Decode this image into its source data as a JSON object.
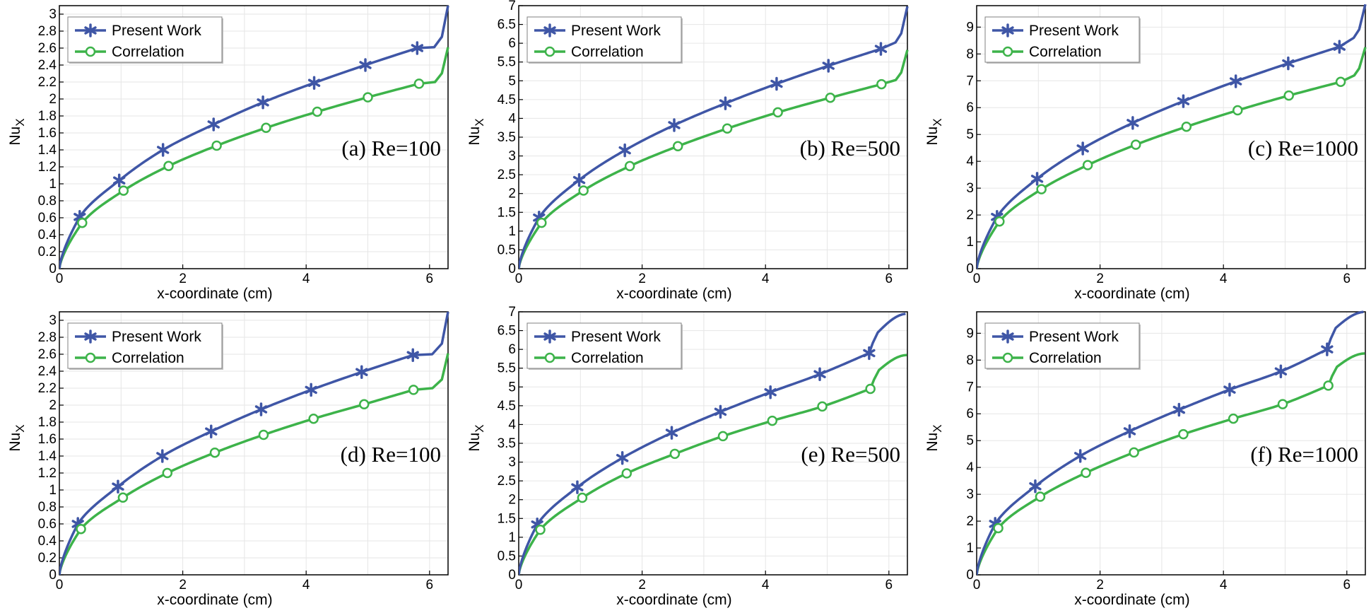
{
  "colors": {
    "present": "#3f56a6",
    "correlation": "#3db34a",
    "grid": "#e6e6e6",
    "frame": "#000000"
  },
  "chart_data": [
    {
      "type": "line",
      "label": "(a) Re=100",
      "xlabel": "x-coordinate (cm)",
      "ylabel": "Nu",
      "ylabel_sub": "X",
      "xlim": [
        0,
        6.3
      ],
      "ylim": [
        0,
        3.1
      ],
      "xticks": [
        "0",
        "2",
        "4",
        "6"
      ],
      "yticks": [
        "0",
        "0.2",
        "0.4",
        "0.6",
        "0.8",
        "1",
        "1.2",
        "1.4",
        "1.6",
        "1.8",
        "2",
        "2.2",
        "2.4",
        "2.6",
        "2.8",
        "3"
      ],
      "legend": {
        "position": "top-left",
        "entries": [
          "Present Work",
          "Correlation"
        ]
      },
      "series": [
        {
          "name": "Present Work",
          "marker": "asterisk",
          "peak": 2.61,
          "end": 3.1,
          "markers": [
            [
              0.33,
              0.61
            ],
            [
              0.97,
              1.04
            ],
            [
              1.68,
              1.4
            ],
            [
              2.5,
              1.7
            ],
            [
              3.3,
              1.96
            ],
            [
              4.13,
              2.19
            ],
            [
              4.96,
              2.4
            ],
            [
              5.8,
              2.6
            ]
          ]
        },
        {
          "name": "Correlation",
          "marker": "circle",
          "peak": 2.2,
          "end": 2.61,
          "markers": [
            [
              0.37,
              0.54
            ],
            [
              1.04,
              0.92
            ],
            [
              1.77,
              1.21
            ],
            [
              2.55,
              1.45
            ],
            [
              3.35,
              1.66
            ],
            [
              4.18,
              1.85
            ],
            [
              5.0,
              2.02
            ],
            [
              5.83,
              2.18
            ]
          ]
        }
      ]
    },
    {
      "type": "line",
      "label": "(b) Re=500",
      "xlabel": "x-coordinate (cm)",
      "ylabel": "Nu",
      "ylabel_sub": "X",
      "xlim": [
        0,
        6.3
      ],
      "ylim": [
        0,
        7
      ],
      "xticks": [
        "0",
        "2",
        "4",
        "6"
      ],
      "yticks": [
        "0",
        "0.5",
        "1",
        "1.5",
        "2",
        "2.5",
        "3",
        "3.5",
        "4",
        "4.5",
        "5",
        "5.5",
        "6",
        "6.5",
        "7"
      ],
      "legend": {
        "position": "top-left",
        "entries": [
          "Present Work",
          "Correlation"
        ]
      },
      "series": [
        {
          "name": "Present Work",
          "marker": "asterisk",
          "peak": 6.02,
          "end": 6.98,
          "markers": [
            [
              0.33,
              1.36
            ],
            [
              0.98,
              2.36
            ],
            [
              1.72,
              3.15
            ],
            [
              2.52,
              3.82
            ],
            [
              3.35,
              4.4
            ],
            [
              4.18,
              4.92
            ],
            [
              5.02,
              5.4
            ],
            [
              5.87,
              5.85
            ]
          ]
        },
        {
          "name": "Correlation",
          "marker": "circle",
          "peak": 5.02,
          "end": 5.82,
          "markers": [
            [
              0.37,
              1.22
            ],
            [
              1.05,
              2.08
            ],
            [
              1.8,
              2.73
            ],
            [
              2.58,
              3.26
            ],
            [
              3.38,
              3.73
            ],
            [
              4.2,
              4.16
            ],
            [
              5.05,
              4.55
            ],
            [
              5.88,
              4.91
            ]
          ]
        }
      ]
    },
    {
      "type": "line",
      "label": "(c) Re=1000",
      "xlabel": "x-coordinate (cm)",
      "ylabel": "Nu",
      "ylabel_sub": "X",
      "xlim": [
        0,
        6.3
      ],
      "ylim": [
        0,
        9.8
      ],
      "xticks": [
        "0",
        "2",
        "4",
        "6"
      ],
      "yticks": [
        "0",
        "1",
        "2",
        "3",
        "4",
        "5",
        "6",
        "7",
        "8",
        "9"
      ],
      "legend": {
        "position": "top-left",
        "entries": [
          "Present Work",
          "Correlation"
        ]
      },
      "series": [
        {
          "name": "Present Work",
          "marker": "asterisk",
          "peak": 8.6,
          "end": 9.85,
          "markers": [
            [
              0.33,
              1.93
            ],
            [
              0.98,
              3.35
            ],
            [
              1.72,
              4.48
            ],
            [
              2.53,
              5.43
            ],
            [
              3.35,
              6.24
            ],
            [
              4.2,
              6.98
            ],
            [
              5.05,
              7.65
            ],
            [
              5.88,
              8.27
            ]
          ]
        },
        {
          "name": "Correlation",
          "marker": "circle",
          "peak": 7.2,
          "end": 8.25,
          "markers": [
            [
              0.37,
              1.76
            ],
            [
              1.05,
              2.96
            ],
            [
              1.8,
              3.86
            ],
            [
              2.58,
              4.62
            ],
            [
              3.4,
              5.29
            ],
            [
              4.23,
              5.9
            ],
            [
              5.06,
              6.45
            ],
            [
              5.9,
              6.96
            ]
          ]
        }
      ]
    },
    {
      "type": "line",
      "label": "(d) Re=100",
      "xlabel": "x-coordinate (cm)",
      "ylabel": "Nu",
      "ylabel_sub": "X",
      "xlim": [
        0,
        6.3
      ],
      "ylim": [
        0,
        3.1
      ],
      "xticks": [
        "0",
        "2",
        "4",
        "6"
      ],
      "yticks": [
        "0",
        "0.2",
        "0.4",
        "0.6",
        "0.8",
        "1",
        "1.2",
        "1.4",
        "1.6",
        "1.8",
        "2",
        "2.2",
        "2.4",
        "2.6",
        "2.8",
        "3"
      ],
      "legend": {
        "position": "top-left",
        "entries": [
          "Present Work",
          "Correlation"
        ]
      },
      "series": [
        {
          "name": "Present Work",
          "marker": "asterisk",
          "peak": 2.6,
          "end": 3.1,
          "markers": [
            [
              0.3,
              0.6
            ],
            [
              0.95,
              1.04
            ],
            [
              1.67,
              1.4
            ],
            [
              2.46,
              1.69
            ],
            [
              3.27,
              1.95
            ],
            [
              4.08,
              2.18
            ],
            [
              4.9,
              2.39
            ],
            [
              5.73,
              2.59
            ]
          ]
        },
        {
          "name": "Correlation",
          "marker": "circle",
          "peak": 2.2,
          "end": 2.61,
          "markers": [
            [
              0.35,
              0.54
            ],
            [
              1.03,
              0.91
            ],
            [
              1.75,
              1.2
            ],
            [
              2.52,
              1.44
            ],
            [
              3.31,
              1.65
            ],
            [
              4.12,
              1.84
            ],
            [
              4.94,
              2.01
            ],
            [
              5.74,
              2.18
            ]
          ]
        }
      ]
    },
    {
      "type": "line",
      "label": "(e) Re=500",
      "xlabel": "x-coordinate (cm)",
      "ylabel": "Nu",
      "ylabel_sub": "X",
      "xlim": [
        0,
        6.3
      ],
      "ylim": [
        0,
        7
      ],
      "xticks": [
        "0",
        "2",
        "4",
        "6"
      ],
      "yticks": [
        "0",
        "0.5",
        "1",
        "1.5",
        "2",
        "2.5",
        "3",
        "3.5",
        "4",
        "4.5",
        "5",
        "5.5",
        "6",
        "6.5",
        "7"
      ],
      "legend": {
        "position": "top-left",
        "entries": [
          "Present Work",
          "Correlation"
        ]
      },
      "series": [
        {
          "name": "Present Work",
          "marker": "asterisk",
          "peak": 5.7,
          "end": 6.95,
          "step": 5.65,
          "stepTop": 6.45,
          "markers": [
            [
              0.3,
              1.34
            ],
            [
              0.95,
              2.33
            ],
            [
              1.68,
              3.11
            ],
            [
              2.48,
              3.78
            ],
            [
              3.27,
              4.34
            ],
            [
              4.08,
              4.86
            ],
            [
              4.88,
              5.34
            ],
            [
              5.68,
              5.9
            ]
          ]
        },
        {
          "name": "Correlation",
          "marker": "circle",
          "peak": 4.8,
          "end": 5.85,
          "step": 5.65,
          "stepTop": 5.45,
          "markers": [
            [
              0.35,
              1.2
            ],
            [
              1.03,
              2.05
            ],
            [
              1.75,
              2.7
            ],
            [
              2.53,
              3.22
            ],
            [
              3.31,
              3.69
            ],
            [
              4.11,
              4.1
            ],
            [
              4.92,
              4.48
            ],
            [
              5.7,
              4.95
            ]
          ]
        }
      ]
    },
    {
      "type": "line",
      "label": "(f) Re=1000",
      "xlabel": "x-coordinate (cm)",
      "ylabel": "Nu",
      "ylabel_sub": "X",
      "xlim": [
        0,
        6.3
      ],
      "ylim": [
        0,
        9.8
      ],
      "xticks": [
        "0",
        "2",
        "4",
        "6"
      ],
      "yticks": [
        "0",
        "1",
        "2",
        "3",
        "4",
        "5",
        "6",
        "7",
        "8",
        "9"
      ],
      "legend": {
        "position": "top-left",
        "entries": [
          "Present Work",
          "Correlation"
        ]
      },
      "series": [
        {
          "name": "Present Work",
          "marker": "asterisk",
          "peak": 8.2,
          "end": 9.8,
          "step": 5.63,
          "stepTop": 9.2,
          "markers": [
            [
              0.3,
              1.9
            ],
            [
              0.95,
              3.3
            ],
            [
              1.68,
              4.43
            ],
            [
              2.48,
              5.35
            ],
            [
              3.28,
              6.15
            ],
            [
              4.1,
              6.9
            ],
            [
              4.93,
              7.58
            ],
            [
              5.68,
              8.4
            ]
          ]
        },
        {
          "name": "Correlation",
          "marker": "circle",
          "peak": 6.9,
          "end": 8.25,
          "step": 5.65,
          "stepTop": 7.75,
          "markers": [
            [
              0.35,
              1.74
            ],
            [
              1.03,
              2.91
            ],
            [
              1.77,
              3.8
            ],
            [
              2.55,
              4.56
            ],
            [
              3.35,
              5.24
            ],
            [
              4.16,
              5.82
            ],
            [
              4.96,
              6.36
            ],
            [
              5.7,
              7.05
            ]
          ]
        }
      ]
    }
  ]
}
